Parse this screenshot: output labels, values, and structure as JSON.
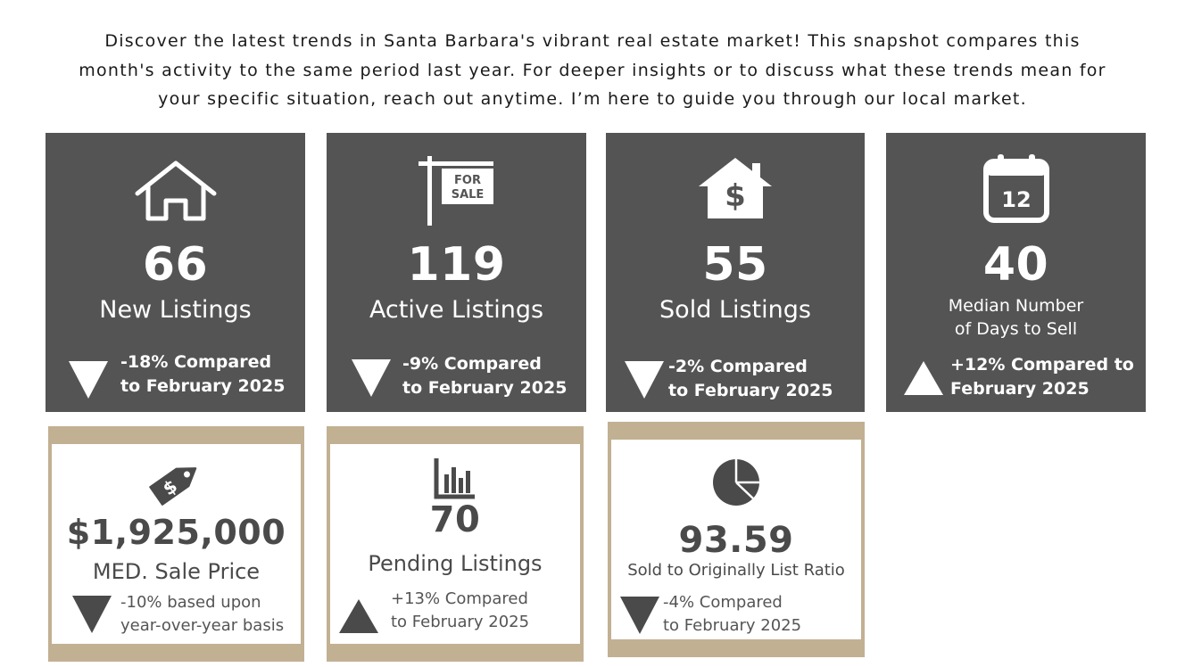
{
  "intro": {
    "line1": "Discover the latest trends in Santa Barbara's vibrant real estate market! This snapshot compares this",
    "line2": "month's activity to the same period last year. For deeper insights or to discuss what these trends mean for",
    "line3": "your specific situation, reach out anytime. I’m here to guide you through our local market."
  },
  "cards": {
    "new_listings": {
      "value": "66",
      "label": "New Listings",
      "compare_line1": "-18% Compared",
      "compare_line2": "to February 2025",
      "trend": "down",
      "icon": "house-icon"
    },
    "active_listings": {
      "value": "119",
      "label": "Active Listings",
      "compare_line1": "-9% Compared",
      "compare_line2": "to February 2025",
      "trend": "down",
      "icon": "for-sale-sign-icon",
      "sign_line1": "FOR",
      "sign_line2": "SALE"
    },
    "sold_listings": {
      "value": "55",
      "label": "Sold Listings",
      "compare_line1": "-2% Compared",
      "compare_line2": "to February 2025",
      "trend": "down",
      "icon": "house-dollar-icon"
    },
    "days_to_sell": {
      "value": "40",
      "label_line1": "Median Number",
      "label_line2": "of Days to Sell",
      "compare_line1": "+12% Compared to",
      "compare_line2": "February 2025",
      "trend": "up",
      "icon": "calendar-icon",
      "calendar_day": "12"
    },
    "sale_price": {
      "value": "$1,925,000",
      "label": "MED. Sale Price",
      "compare_line1": "-10% based upon",
      "compare_line2": "year-over-year basis",
      "trend": "down",
      "icon": "price-tag-icon"
    },
    "pending_listings": {
      "value": "70",
      "label": "Pending Listings",
      "compare_line1": "+13% Compared",
      "compare_line2": "to February 2025",
      "trend": "up",
      "icon": "bar-chart-icon"
    },
    "list_ratio": {
      "value": "93.59",
      "label": "Sold to Originally List Ratio",
      "compare_line1": "-4% Compared",
      "compare_line2": "to February 2025",
      "trend": "down",
      "icon": "pie-chart-icon"
    }
  },
  "colors": {
    "dark_card": "#545454",
    "tan_band": "#c2b092",
    "light_text": "#4a4a4a"
  }
}
